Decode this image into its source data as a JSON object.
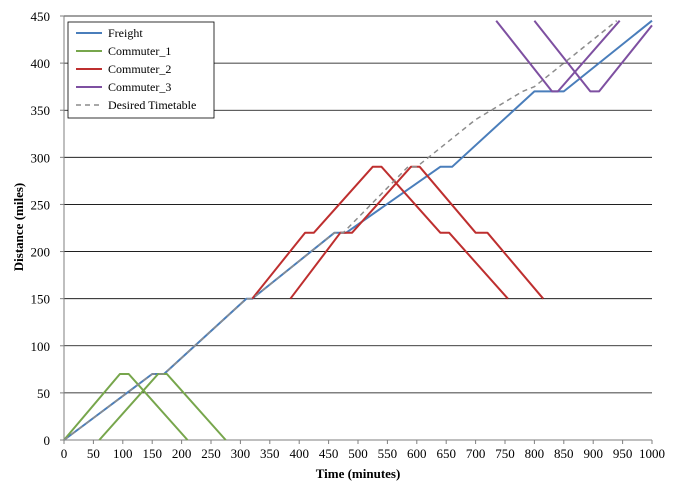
{
  "chart_data": {
    "type": "line",
    "xlabel": "Time (minutes)",
    "ylabel": "Distance (miles)",
    "xlim": [
      0,
      1000
    ],
    "ylim": [
      0,
      450
    ],
    "x_ticks": [
      0,
      50,
      100,
      150,
      200,
      250,
      300,
      350,
      400,
      450,
      500,
      550,
      600,
      650,
      700,
      750,
      800,
      850,
      900,
      950,
      1000
    ],
    "y_ticks": [
      0,
      50,
      100,
      150,
      200,
      250,
      300,
      350,
      400,
      450
    ],
    "grid": "horizontal",
    "legend_position": "top-left",
    "series": [
      {
        "name": "Freight",
        "color": "#4a7ebb",
        "dash": "solid",
        "segments": [
          [
            [
              0,
              0
            ],
            [
              150,
              70
            ],
            [
              170,
              70
            ],
            [
              310,
              150
            ],
            [
              320,
              150
            ],
            [
              460,
              220
            ],
            [
              480,
              220
            ],
            [
              640,
              290
            ],
            [
              660,
              290
            ],
            [
              800,
              370
            ],
            [
              850,
              370
            ],
            [
              1000,
              445
            ]
          ]
        ]
      },
      {
        "name": "Commuter_1",
        "color": "#77a64c",
        "dash": "solid",
        "segments": [
          [
            [
              0,
              0
            ],
            [
              95,
              70
            ],
            [
              110,
              70
            ],
            [
              210,
              0
            ]
          ],
          [
            [
              60,
              0
            ],
            [
              160,
              70
            ],
            [
              175,
              70
            ],
            [
              275,
              0
            ]
          ]
        ]
      },
      {
        "name": "Commuter_2",
        "color": "#be2f2f",
        "dash": "solid",
        "segments": [
          [
            [
              320,
              150
            ],
            [
              410,
              220
            ],
            [
              425,
              220
            ],
            [
              525,
              290
            ],
            [
              540,
              290
            ],
            [
              640,
              220
            ],
            [
              655,
              220
            ],
            [
              755,
              150
            ]
          ],
          [
            [
              385,
              150
            ],
            [
              470,
              220
            ],
            [
              490,
              220
            ],
            [
              590,
              290
            ],
            [
              605,
              290
            ],
            [
              700,
              220
            ],
            [
              720,
              220
            ],
            [
              815,
              150
            ]
          ]
        ]
      },
      {
        "name": "Commuter_3",
        "color": "#7e50a1",
        "dash": "solid",
        "segments": [
          [
            [
              735,
              445
            ],
            [
              830,
              370
            ],
            [
              840,
              370
            ],
            [
              945,
              445
            ]
          ],
          [
            [
              800,
              445
            ],
            [
              895,
              370
            ],
            [
              910,
              370
            ],
            [
              1000,
              440
            ]
          ]
        ]
      },
      {
        "name": "Desired Timetable",
        "color": "#8c8c8c",
        "dash": "dashed",
        "segments": [
          [
            [
              0,
              0
            ],
            [
              150,
              70
            ],
            [
              170,
              70
            ],
            [
              310,
              150
            ],
            [
              320,
              150
            ],
            [
              460,
              220
            ],
            [
              475,
              220
            ],
            [
              585,
              290
            ],
            [
              600,
              290
            ],
            [
              700,
              340
            ],
            [
              780,
              370
            ],
            [
              800,
              375
            ],
            [
              940,
              445
            ]
          ]
        ]
      }
    ]
  }
}
